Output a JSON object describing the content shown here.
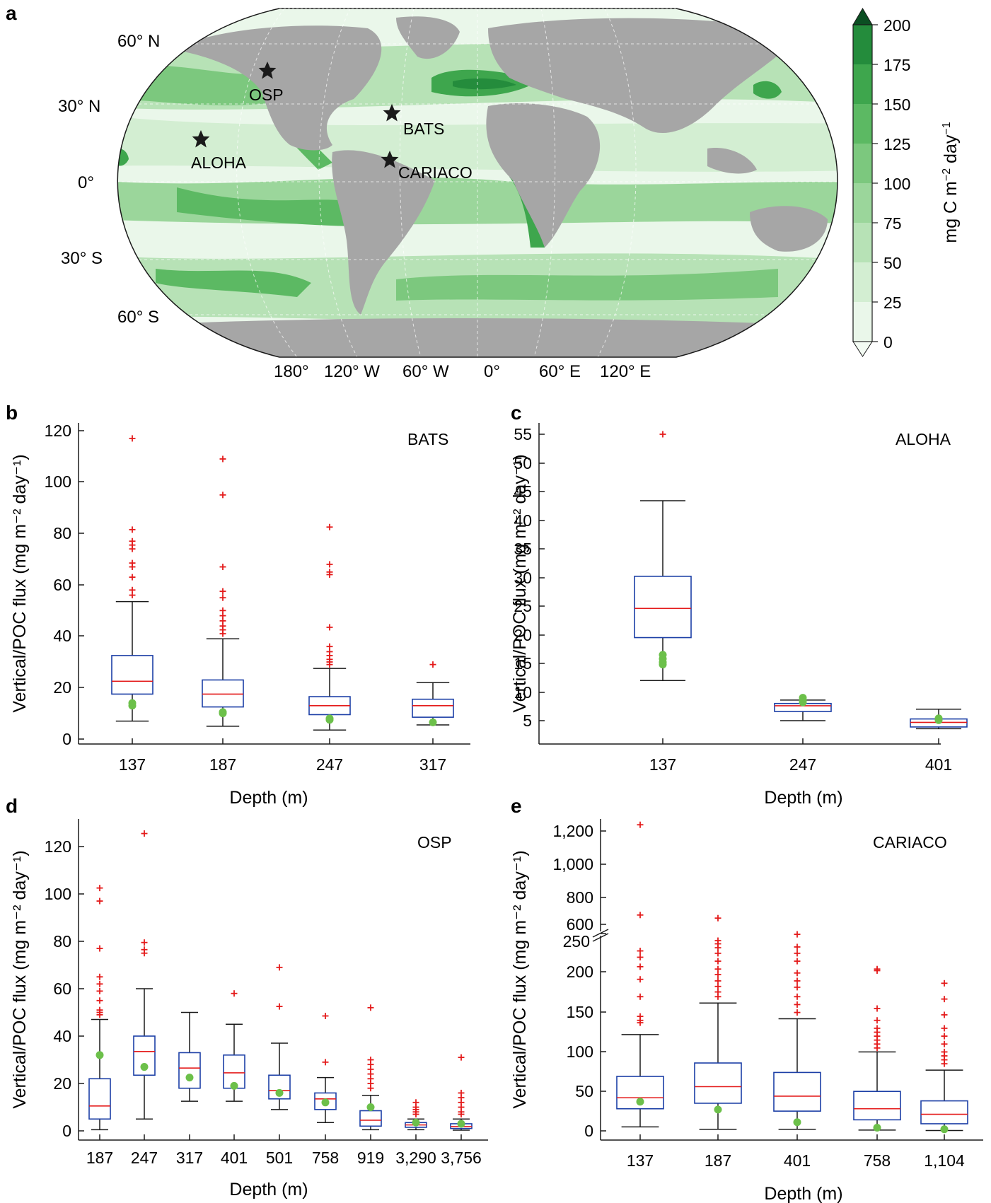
{
  "figure": {
    "panel_letters": [
      "a",
      "b",
      "c",
      "d",
      "e"
    ],
    "colors": {
      "ocean_levels": [
        "#eaf7ea",
        "#d3eed2",
        "#b7e2b6",
        "#9bd69b",
        "#7cc87e",
        "#5cb963",
        "#3ea64d",
        "#248c3c",
        "#0f6b2c"
      ],
      "land": "#a6a6a6",
      "box_edge": "#1c3fa6",
      "median": "#e41b1b",
      "outlier": "#e41b1b",
      "model_point": "#6cc04a",
      "axis": "#1a1a1a"
    }
  },
  "map_panel": {
    "letter": "a",
    "lat_labels": [
      "60° N",
      "30° N",
      "0°",
      "30° S",
      "60° S"
    ],
    "lon_labels": [
      "180°",
      "120° W",
      "60° W",
      "0°",
      "60° E",
      "120° E"
    ],
    "stations": [
      {
        "name": "OSP",
        "icon": "star-icon"
      },
      {
        "name": "BATS",
        "icon": "star-icon"
      },
      {
        "name": "ALOHA",
        "icon": "star-icon"
      },
      {
        "name": "CARIACO",
        "icon": "star-icon"
      }
    ],
    "colorbar": {
      "ticks": [
        "200",
        "175",
        "150",
        "125",
        "100",
        "75",
        "50",
        "25",
        "0"
      ],
      "label_main": "mg C m",
      "label_sup1": "−2",
      "label_mid": " day",
      "label_sup2": "−1"
    }
  },
  "chart_data": [
    {
      "id": "b",
      "type": "box",
      "site": "BATS",
      "xlabel": "Depth (m)",
      "ylabel": "Vertical/POC flux (mg m⁻² day⁻¹)",
      "ylim": [
        -2,
        122
      ],
      "yticks": [
        "0",
        "20",
        "40",
        "60",
        "80",
        "100",
        "120"
      ],
      "categories": [
        "137",
        "187",
        "247",
        "317"
      ],
      "boxes": [
        {
          "whislo": 7,
          "q1": 17.5,
          "med": 22.5,
          "q3": 32.5,
          "whishi": 53.5,
          "fliers": [
            117,
            81.5,
            77,
            75.5,
            74,
            68.5,
            67,
            63,
            58,
            56
          ],
          "model": [
            14,
            13
          ]
        },
        {
          "whislo": 5,
          "q1": 12.5,
          "med": 17.5,
          "q3": 23,
          "whishi": 39,
          "fliers": [
            109,
            95,
            67,
            57.5,
            55,
            50,
            48,
            46,
            44,
            42.5,
            41
          ],
          "model": [
            10.5,
            10
          ]
        },
        {
          "whislo": 3.5,
          "q1": 9.5,
          "med": 13,
          "q3": 16.5,
          "whishi": 27.5,
          "fliers": [
            82.5,
            68,
            65,
            64,
            43.5,
            36,
            34,
            32.5,
            31,
            30,
            29
          ],
          "model": [
            8,
            7.5
          ]
        },
        {
          "whislo": 5.5,
          "q1": 8.5,
          "med": 13,
          "q3": 15.5,
          "whishi": 22,
          "fliers": [
            29
          ],
          "model": [
            6.5
          ]
        }
      ]
    },
    {
      "id": "c",
      "type": "box",
      "site": "ALOHA",
      "xlabel": "Depth (m)",
      "ylabel": "Vertical/POC flux (mg m⁻² day⁻¹)",
      "ylim": [
        1,
        57.5
      ],
      "yticks": [
        "5",
        "10",
        "15",
        "20",
        "25",
        "30",
        "35",
        "40",
        "45",
        "50",
        "55"
      ],
      "categories": [
        "137",
        "247",
        "401"
      ],
      "boxes": [
        {
          "whislo": 12,
          "q1": 19.5,
          "med": 24.6,
          "q3": 30.2,
          "whishi": 43.4,
          "fliers": [
            55
          ],
          "model": [
            16.5,
            15.8,
            15.2,
            14.8
          ]
        },
        {
          "whislo": 5,
          "q1": 6.6,
          "med": 7.6,
          "q3": 8,
          "whishi": 8.6,
          "fliers": [],
          "model": [
            9,
            8.5,
            8.2
          ]
        },
        {
          "whislo": 3.6,
          "q1": 3.9,
          "med": 4.7,
          "q3": 5.3,
          "whishi": 7,
          "fliers": [],
          "model": [
            5.4,
            5.1
          ]
        }
      ]
    },
    {
      "id": "d",
      "type": "box",
      "site": "OSP",
      "xlabel": "Depth (m)",
      "ylabel": "Vertical/POC flux (mg m⁻² day⁻¹)",
      "ylim": [
        -3,
        132
      ],
      "yticks": [
        "0",
        "20",
        "40",
        "60",
        "80",
        "100",
        "120"
      ],
      "categories": [
        "187",
        "247",
        "317",
        "401",
        "501",
        "758",
        "919",
        "3,290",
        "3,756"
      ],
      "boxes": [
        {
          "whislo": 0.5,
          "q1": 5,
          "med": 10.5,
          "q3": 22,
          "whishi": 47,
          "fliers": [
            102.5,
            97,
            77,
            65,
            62,
            59,
            55,
            51,
            50,
            49
          ],
          "model": [
            32
          ]
        },
        {
          "whislo": 5,
          "q1": 23.5,
          "med": 33.5,
          "q3": 40,
          "whishi": 60,
          "fliers": [
            125.5,
            79.5,
            76.5,
            75
          ],
          "model": [
            27
          ]
        },
        {
          "whislo": 12.5,
          "q1": 18,
          "med": 26.5,
          "q3": 33,
          "whishi": 50,
          "fliers": [],
          "model": [
            22.5
          ]
        },
        {
          "whislo": 12.5,
          "q1": 18,
          "med": 24.5,
          "q3": 32,
          "whishi": 45,
          "fliers": [
            58
          ],
          "model": [
            19
          ]
        },
        {
          "whislo": 9,
          "q1": 13.5,
          "med": 17,
          "q3": 23.5,
          "whishi": 37,
          "fliers": [
            69,
            52.5
          ],
          "model": [
            16
          ]
        },
        {
          "whislo": 3.5,
          "q1": 9,
          "med": 13.5,
          "q3": 16,
          "whishi": 22.5,
          "fliers": [
            48.5,
            29
          ],
          "model": [
            12
          ]
        },
        {
          "whislo": 0.5,
          "q1": 2,
          "med": 4.5,
          "q3": 8.5,
          "whishi": 15,
          "fliers": [
            52,
            30,
            28,
            26,
            24,
            22,
            20,
            18
          ],
          "model": [
            10
          ]
        },
        {
          "whislo": 0.5,
          "q1": 1.5,
          "med": 2.5,
          "q3": 3.5,
          "whishi": 5,
          "fliers": [
            12,
            10,
            9,
            8,
            7
          ],
          "model": [
            3.5
          ]
        },
        {
          "whislo": 0.3,
          "q1": 1,
          "med": 1.8,
          "q3": 3,
          "whishi": 5,
          "fliers": [
            31,
            16,
            14,
            12,
            10,
            8,
            7
          ],
          "model": [
            3
          ]
        }
      ]
    },
    {
      "id": "e",
      "type": "box",
      "site": "CARIACO",
      "xlabel": "Depth (m)",
      "ylabel": "Vertical/POC flux (mg m⁻² day⁻¹)",
      "axis_break": {
        "lower_max": 250,
        "upper_min": 600
      },
      "yticks_lower": [
        "0",
        "50",
        "100",
        "150",
        "200",
        "250"
      ],
      "yticks_upper": [
        "600",
        "800",
        "1,000",
        "1,200"
      ],
      "categories": [
        "137",
        "187",
        "401",
        "758",
        "1,104"
      ],
      "boxes": [
        {
          "whislo": 5,
          "q1": 28,
          "med": 42,
          "q3": 69,
          "whishi": 122,
          "fliers": [
            1240,
            660,
            228,
            220,
            208,
            192,
            170,
            145,
            140,
            137
          ],
          "model": [
            37
          ]
        },
        {
          "whislo": 2,
          "q1": 35,
          "med": 56,
          "q3": 86,
          "whishi": 162,
          "fliers": [
            640,
            241,
            237,
            232,
            225,
            215,
            205,
            198,
            190,
            183,
            176,
            170
          ],
          "model": [
            27
          ]
        },
        {
          "whislo": 2,
          "q1": 25,
          "med": 44,
          "q3": 74,
          "whishi": 142,
          "fliers": [
            249,
            233,
            225,
            215,
            200,
            190,
            182,
            170,
            160,
            150
          ],
          "model": [
            11
          ]
        },
        {
          "whislo": 1,
          "q1": 14,
          "med": 28,
          "q3": 50,
          "whishi": 100,
          "fliers": [
            205,
            203,
            155,
            140,
            130,
            125,
            120,
            115,
            110,
            105
          ],
          "model": [
            4
          ]
        },
        {
          "whislo": 0.5,
          "q1": 9,
          "med": 21,
          "q3": 38,
          "whishi": 77,
          "fliers": [
            187,
            167,
            147,
            130,
            120,
            110,
            100,
            95,
            90,
            85
          ],
          "model": [
            2
          ]
        }
      ]
    }
  ]
}
